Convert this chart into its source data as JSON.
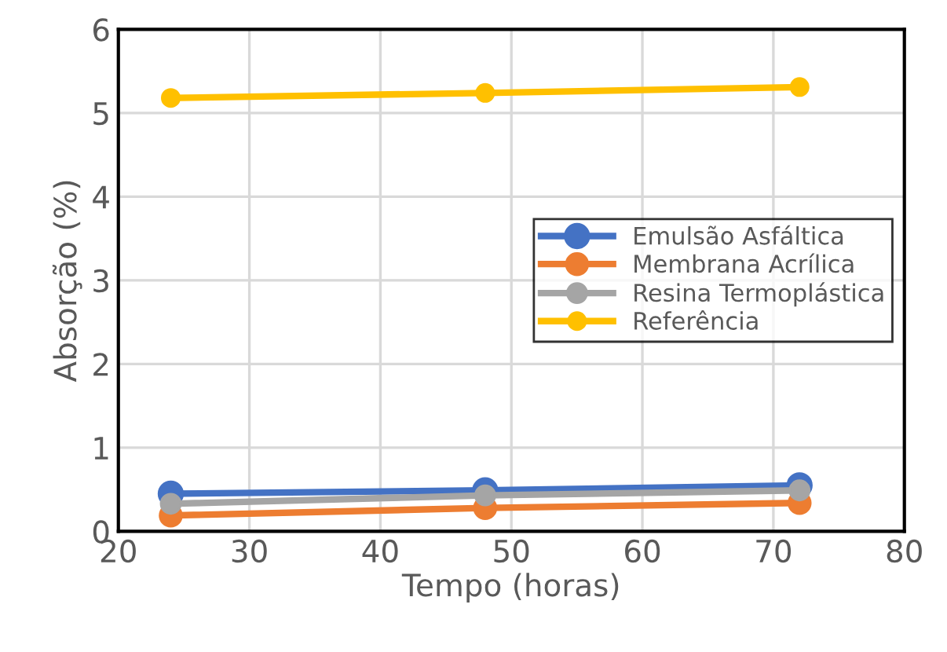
{
  "chart_data": {
    "type": "line",
    "xlabel": "Tempo (horas)",
    "ylabel": "Absorção (%)",
    "x": [
      24,
      48,
      72
    ],
    "series": [
      {
        "name": "Emulsão Asfáltica",
        "color": "#4472c4",
        "values": [
          0.45,
          0.49,
          0.55
        ]
      },
      {
        "name": "Membrana Acrílica",
        "color": "#ed7d31",
        "values": [
          0.19,
          0.28,
          0.34
        ]
      },
      {
        "name": "Resina Termoplástica",
        "color": "#a5a5a5",
        "values": [
          0.33,
          0.43,
          0.49
        ]
      },
      {
        "name": "Referência",
        "color": "#ffc000",
        "values": [
          5.18,
          5.24,
          5.31
        ]
      }
    ],
    "xlim": [
      20,
      80
    ],
    "xticks": [
      20,
      30,
      40,
      50,
      60,
      70,
      80
    ],
    "ylim": [
      0,
      6
    ],
    "yticks": [
      0,
      1,
      2,
      3,
      4,
      5,
      6
    ],
    "grid": true,
    "legend": "center right",
    "marker": "circle",
    "line_style": "solid"
  }
}
